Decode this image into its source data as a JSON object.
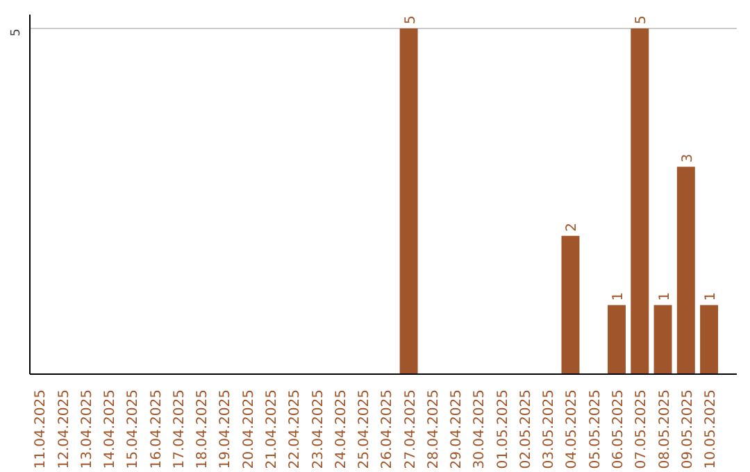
{
  "chart_data": {
    "type": "bar",
    "categories": [
      "11.04.2025",
      "12.04.2025",
      "13.04.2025",
      "14.04.2025",
      "15.04.2025",
      "16.04.2025",
      "17.04.2025",
      "18.04.2025",
      "19.04.2025",
      "20.04.2025",
      "21.04.2025",
      "22.04.2025",
      "23.04.2025",
      "24.04.2025",
      "25.04.2025",
      "26.04.2025",
      "27.04.2025",
      "28.04.2025",
      "29.04.2025",
      "30.04.2025",
      "01.05.2025",
      "02.05.2025",
      "03.05.2025",
      "04.05.2025",
      "05.05.2025",
      "06.05.2025",
      "07.05.2025",
      "08.05.2025",
      "09.05.2025",
      "10.05.2025"
    ],
    "values": [
      null,
      null,
      null,
      null,
      null,
      null,
      null,
      null,
      null,
      null,
      null,
      null,
      null,
      null,
      null,
      null,
      5,
      null,
      null,
      null,
      null,
      null,
      null,
      2,
      null,
      1,
      5,
      1,
      3,
      1
    ],
    "data_labels": true,
    "color": "#a0562a",
    "ylim": [
      0,
      5.2
    ],
    "yticks": [
      5
    ],
    "grid": "y"
  }
}
